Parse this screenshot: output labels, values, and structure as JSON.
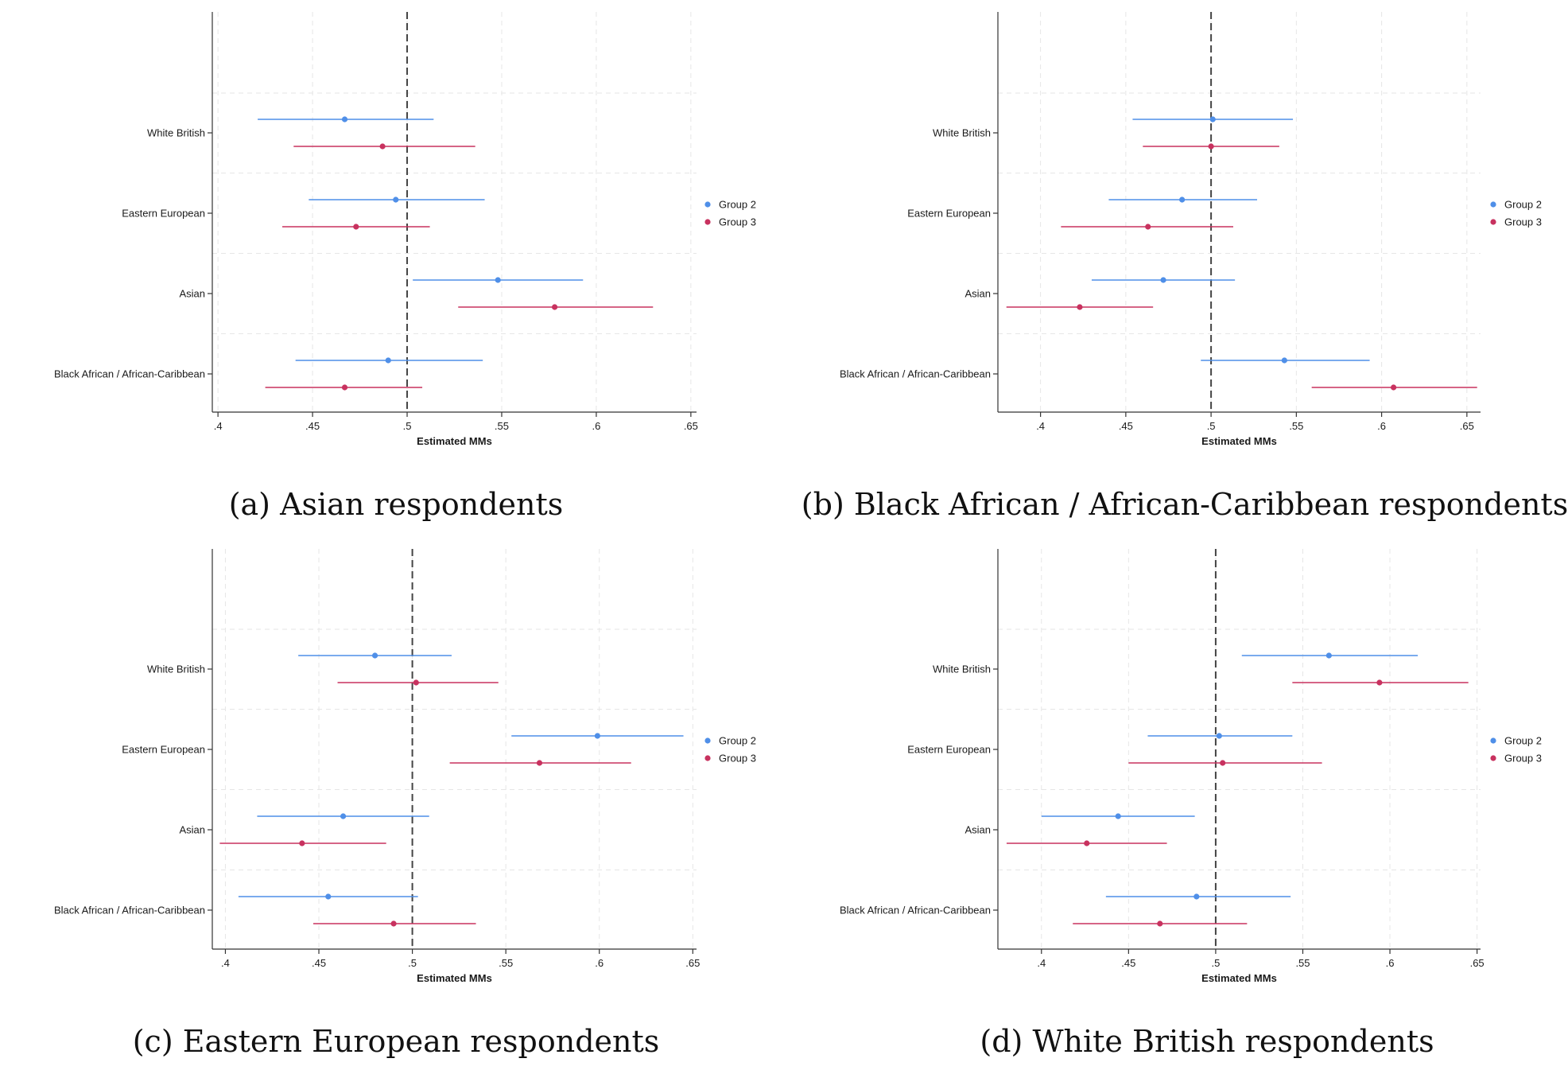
{
  "colors": {
    "group2": "#4f8fe8",
    "group3": "#c8325f",
    "axis": "#333333",
    "grid": "#e6e6e6",
    "refline": "#444444"
  },
  "chart_data": [
    {
      "type": "scatter",
      "caption": "(a) Asian respondents",
      "xlabel": "Estimated MMs",
      "xlim": [
        0.397,
        0.653
      ],
      "xticks": [
        0.4,
        0.45,
        0.5,
        0.55,
        0.6,
        0.65
      ],
      "xtick_labels": [
        ".4",
        ".45",
        ".5",
        ".55",
        ".6",
        ".65"
      ],
      "reference_line": 0.5,
      "categories": [
        "White British",
        "Eastern European",
        "Asian",
        "Black African / African-Caribbean"
      ],
      "legend": [
        "Group 2",
        "Group 3"
      ],
      "series": [
        {
          "name": "Group 2",
          "estimates": [
            0.467,
            0.494,
            0.548,
            0.49
          ],
          "ci_low": [
            0.421,
            0.448,
            0.503,
            0.441
          ],
          "ci_high": [
            0.514,
            0.541,
            0.593,
            0.54
          ]
        },
        {
          "name": "Group 3",
          "estimates": [
            0.487,
            0.473,
            0.578,
            0.467
          ],
          "ci_low": [
            0.44,
            0.434,
            0.527,
            0.425
          ],
          "ci_high": [
            0.536,
            0.512,
            0.63,
            0.508
          ]
        }
      ]
    },
    {
      "type": "scatter",
      "caption": "(b) Black African / African-Caribbean respondents",
      "xlabel": "Estimated MMs",
      "xlim": [
        0.375,
        0.658
      ],
      "xticks": [
        0.4,
        0.45,
        0.5,
        0.55,
        0.6,
        0.65
      ],
      "xtick_labels": [
        ".4",
        ".45",
        ".5",
        ".55",
        ".6",
        ".65"
      ],
      "reference_line": 0.5,
      "categories": [
        "White British",
        "Eastern European",
        "Asian",
        "Black African / African-Caribbean"
      ],
      "legend": [
        "Group 2",
        "Group 3"
      ],
      "series": [
        {
          "name": "Group 2",
          "estimates": [
            0.501,
            0.483,
            0.472,
            0.543
          ],
          "ci_low": [
            0.454,
            0.44,
            0.43,
            0.494
          ],
          "ci_high": [
            0.548,
            0.527,
            0.514,
            0.593
          ]
        },
        {
          "name": "Group 3",
          "estimates": [
            0.5,
            0.463,
            0.423,
            0.607
          ],
          "ci_low": [
            0.46,
            0.412,
            0.38,
            0.559
          ],
          "ci_high": [
            0.54,
            0.513,
            0.466,
            0.656
          ]
        }
      ]
    },
    {
      "type": "scatter",
      "caption": "(c) Eastern European respondents",
      "xlabel": "Estimated MMs",
      "xlim": [
        0.393,
        0.652
      ],
      "xticks": [
        0.4,
        0.45,
        0.5,
        0.55,
        0.6,
        0.65
      ],
      "xtick_labels": [
        ".4",
        ".45",
        ".5",
        ".55",
        ".6",
        ".65"
      ],
      "reference_line": 0.5,
      "categories": [
        "White British",
        "Eastern European",
        "Asian",
        "Black African / African-Caribbean"
      ],
      "legend": [
        "Group 2",
        "Group 3"
      ],
      "series": [
        {
          "name": "Group 2",
          "estimates": [
            0.48,
            0.599,
            0.463,
            0.455
          ],
          "ci_low": [
            0.439,
            0.553,
            0.417,
            0.407
          ],
          "ci_high": [
            0.521,
            0.645,
            0.509,
            0.503
          ]
        },
        {
          "name": "Group 3",
          "estimates": [
            0.502,
            0.568,
            0.441,
            0.49
          ],
          "ci_low": [
            0.46,
            0.52,
            0.397,
            0.447
          ],
          "ci_high": [
            0.546,
            0.617,
            0.486,
            0.534
          ]
        }
      ]
    },
    {
      "type": "scatter",
      "caption": "(d) White British respondents",
      "xlabel": "Estimated MMs",
      "xlim": [
        0.375,
        0.652
      ],
      "xticks": [
        0.4,
        0.45,
        0.5,
        0.55,
        0.6,
        0.65
      ],
      "xtick_labels": [
        ".4",
        ".45",
        ".5",
        ".55",
        ".6",
        ".65"
      ],
      "reference_line": 0.5,
      "categories": [
        "White British",
        "Eastern European",
        "Asian",
        "Black African / African-Caribbean"
      ],
      "legend": [
        "Group 2",
        "Group 3"
      ],
      "series": [
        {
          "name": "Group 2",
          "estimates": [
            0.565,
            0.502,
            0.444,
            0.489
          ],
          "ci_low": [
            0.515,
            0.461,
            0.4,
            0.437
          ],
          "ci_high": [
            0.616,
            0.544,
            0.488,
            0.543
          ]
        },
        {
          "name": "Group 3",
          "estimates": [
            0.594,
            0.504,
            0.426,
            0.468
          ],
          "ci_low": [
            0.544,
            0.45,
            0.38,
            0.418
          ],
          "ci_high": [
            0.645,
            0.561,
            0.472,
            0.518
          ]
        }
      ]
    }
  ]
}
